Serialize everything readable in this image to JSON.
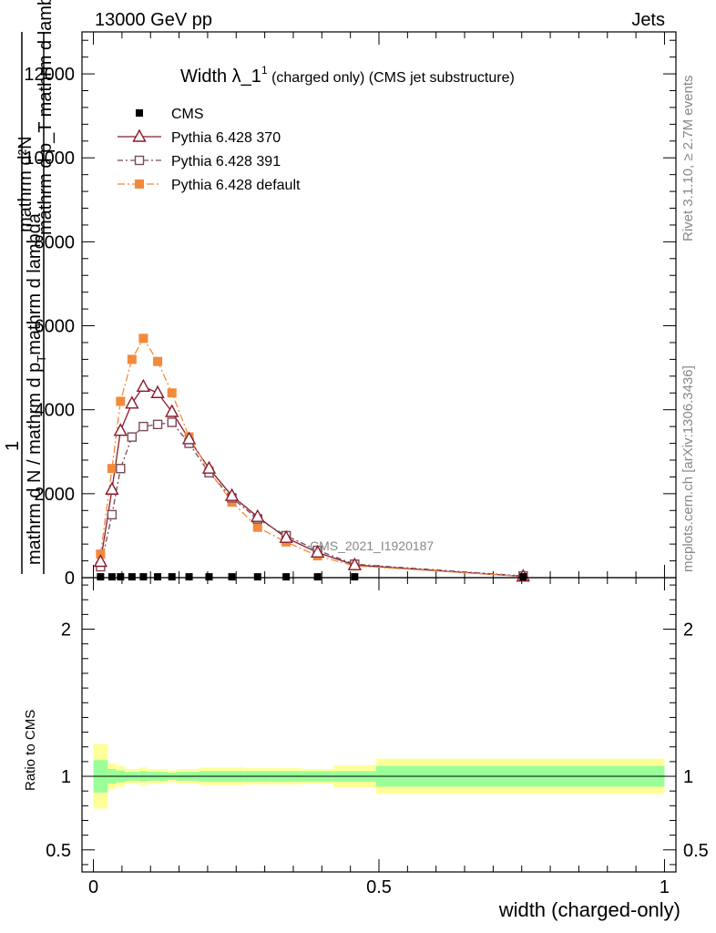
{
  "header": {
    "left": "13000 GeV pp",
    "right": "Jets"
  },
  "title": {
    "main": "Width λ_1",
    "sup": "1",
    "sub": " (charged only) (CMS jet substructure)"
  },
  "side": {
    "rivet": "Rivet 3.1.10, ≥ 2.7M events",
    "mcplots": "mcplots.cern.ch [arXiv:1306.3436]"
  },
  "watermark": "CMS_2021_I1920187",
  "chart_data": [
    {
      "type": "line",
      "ylabel_lines": [
        "mathrm d²N",
        "mathrm d p_T mathrm d lambda",
        "1",
        "mathrm d N / mathrm d p_T mathrm d lambda"
      ],
      "ylabel_num": "mathrm d²N",
      "ylabel_den": "mathrm d p_T mathrm d lambda",
      "ylabel_one": "1",
      "ylabel_den2": "mathrm d N / mathrm d p",
      "ylabel_den2_sub": "T",
      "ylabel_den2_tail": "mathrm d lambda",
      "ylim": [
        0,
        13000
      ],
      "xlim": [
        -0.02,
        1.02
      ],
      "yticks": [
        0,
        2000,
        4000,
        6000,
        8000,
        10000,
        12000
      ],
      "ytick_labels": [
        "0",
        "2000",
        "4000",
        "6000",
        "8000",
        "10000",
        "12000"
      ],
      "x": [
        0.0125,
        0.0325,
        0.0475,
        0.0675,
        0.0875,
        0.1125,
        0.1375,
        0.1675,
        0.2025,
        0.2425,
        0.2875,
        0.3375,
        0.3925,
        0.4575,
        0.7525
      ],
      "series": [
        {
          "name": "CMS",
          "style": "square",
          "values": [
            20,
            20,
            20,
            20,
            20,
            20,
            20,
            20,
            20,
            20,
            20,
            20,
            20,
            20,
            20
          ]
        },
        {
          "name": "Pythia 6.428 370",
          "style": "triangle",
          "color": "#8b1a2a",
          "values": [
            380,
            2100,
            3500,
            4150,
            4550,
            4400,
            3950,
            3300,
            2600,
            1950,
            1450,
            950,
            600,
            300,
            30
          ]
        },
        {
          "name": "Pythia 6.428 391",
          "style": "open-square",
          "color": "#7a4a58",
          "values": [
            260,
            1500,
            2600,
            3350,
            3600,
            3650,
            3700,
            3200,
            2500,
            1900,
            1400,
            1000,
            650,
            320,
            40
          ]
        },
        {
          "name": "Pythia 6.428 default",
          "style": "filled-square",
          "color": "#f28a3c",
          "values": [
            560,
            2600,
            4200,
            5200,
            5700,
            5150,
            4400,
            3350,
            2550,
            1800,
            1200,
            850,
            520,
            280,
            30
          ]
        }
      ]
    },
    {
      "type": "area",
      "ylabel": "Ratio to CMS",
      "ylim": [
        0.35,
        2.35
      ],
      "yticks": [
        0.5,
        1,
        2
      ],
      "ytick_labels": [
        "0.5",
        "1",
        "2"
      ],
      "xlabel": "width (charged-only)",
      "xticks": [
        0,
        0.5,
        1
      ],
      "xtick_labels": [
        "0",
        "0.5",
        "1"
      ],
      "band_edges": [
        0.0,
        0.025,
        0.04,
        0.055,
        0.08,
        0.095,
        0.13,
        0.145,
        0.185,
        0.22,
        0.265,
        0.31,
        0.365,
        0.42,
        0.495,
        1.0
      ],
      "band_green": [
        0.11,
        0.05,
        0.04,
        0.03,
        0.035,
        0.03,
        0.025,
        0.03,
        0.035,
        0.035,
        0.035,
        0.035,
        0.035,
        0.035,
        0.07
      ],
      "band_yellow": [
        0.22,
        0.09,
        0.07,
        0.05,
        0.06,
        0.05,
        0.04,
        0.05,
        0.06,
        0.06,
        0.055,
        0.055,
        0.05,
        0.075,
        0.12
      ]
    }
  ]
}
